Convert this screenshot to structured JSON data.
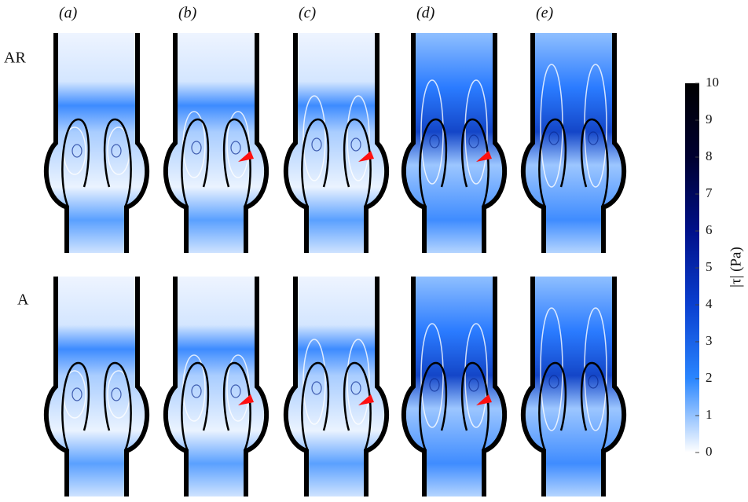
{
  "columns": [
    "(a)",
    "(b)",
    "(c)",
    "(d)",
    "(e)"
  ],
  "rows": [
    "AR",
    "A"
  ],
  "colorbar": {
    "label": "|τ| (Pa)",
    "lim": [
      0,
      10
    ],
    "ticks": [
      0,
      1,
      2,
      3,
      4,
      5,
      6,
      7,
      8,
      9,
      10
    ],
    "colors": [
      "#ffffff",
      "#2a86ff",
      "#0a3fd0",
      "#00108a",
      "#000030",
      "#000000"
    ]
  }
}
